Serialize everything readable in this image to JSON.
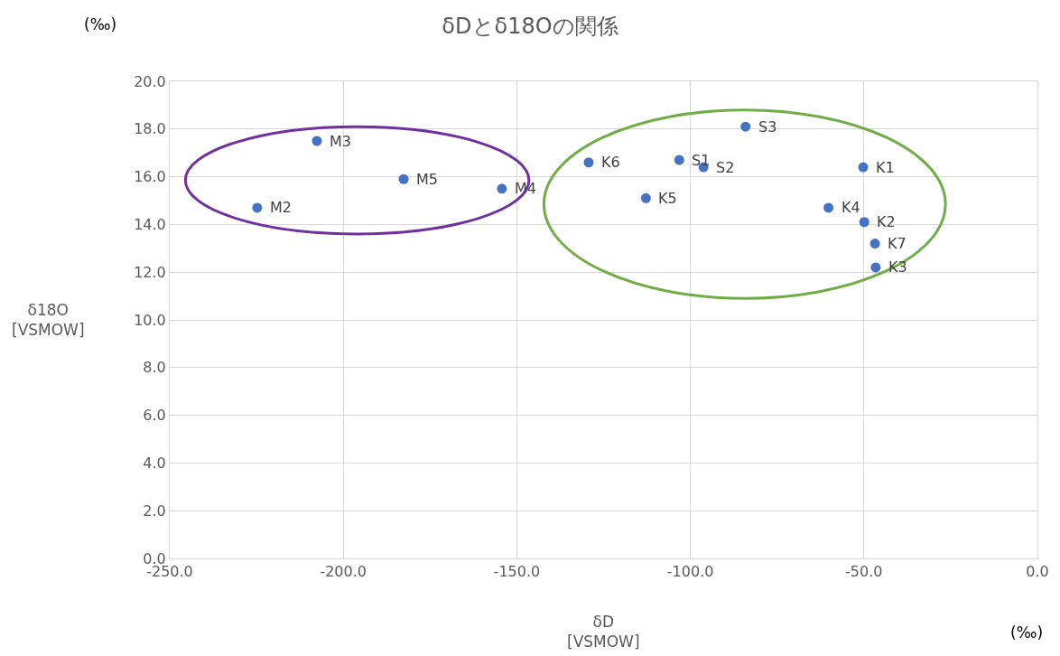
{
  "chart_data": {
    "type": "scatter",
    "title": "δDとδ18Oの関係",
    "xlabel": "δD\n[VSMOW]",
    "ylabel": "δ18O\n[VSMOW]",
    "x": [
      -224.8,
      -207.6,
      -182.6,
      -154.3,
      -129.3,
      -103.2,
      -96.2,
      -112.8,
      -84.1,
      -50.2,
      -60.2,
      -49.9,
      -46.8,
      -46.6
    ],
    "series": [
      {
        "color": "#4472c4",
        "values": [
          14.7,
          17.5,
          15.9,
          15.5,
          16.6,
          16.7,
          16.4,
          15.1,
          18.1,
          16.4,
          14.7,
          14.1,
          13.2,
          12.2
        ]
      }
    ],
    "annotations": [
      "(‰)",
      "(‰)",
      {
        "text": "M2",
        "x": -224.8,
        "y": 14.7
      },
      {
        "text": "M3",
        "x": -207.6,
        "y": 17.5
      },
      {
        "text": "M5",
        "x": -182.6,
        "y": 15.9
      },
      {
        "text": "M4",
        "x": -154.3,
        "y": 15.5
      },
      {
        "text": "K6",
        "x": -129.3,
        "y": 16.6
      },
      {
        "text": "S1",
        "x": -103.2,
        "y": 16.7
      },
      {
        "text": "S2",
        "x": -96.2,
        "y": 16.4
      },
      {
        "text": "K5",
        "x": -112.8,
        "y": 15.1
      },
      {
        "text": "S3",
        "x": -84.1,
        "y": 18.1
      },
      {
        "text": "K1",
        "x": -50.2,
        "y": 16.4
      },
      {
        "text": "K4",
        "x": -60.2,
        "y": 14.7
      },
      {
        "text": "K2",
        "x": -49.9,
        "y": 14.1
      },
      {
        "text": "K7",
        "x": -46.8,
        "y": 13.2
      },
      {
        "text": "K3",
        "x": -46.6,
        "y": 12.2
      }
    ],
    "xlim": [
      -250,
      0
    ],
    "xticks": [
      {
        "value": -250,
        "label": "-250.0"
      },
      {
        "value": -200,
        "label": "-200.0"
      },
      {
        "value": -150,
        "label": "-150.0"
      },
      {
        "value": -100,
        "label": "-100.0"
      },
      {
        "value": -50,
        "label": "-50.0"
      },
      {
        "value": 0,
        "label": "0.0"
      }
    ],
    "ylim": [
      0,
      20
    ],
    "yticks": [
      {
        "value": 0,
        "label": "0.0"
      },
      {
        "value": 2,
        "label": "2.0"
      },
      {
        "value": 4,
        "label": "4.0"
      },
      {
        "value": 6,
        "label": "6.0"
      },
      {
        "value": 8,
        "label": "8.0"
      },
      {
        "value": 10,
        "label": "10.0"
      },
      {
        "value": 12,
        "label": "12.0"
      },
      {
        "value": 14,
        "label": "14.0"
      },
      {
        "value": 16,
        "label": "16.0"
      },
      {
        "value": 18,
        "label": "18.0"
      },
      {
        "value": 20,
        "label": "20.0"
      }
    ],
    "grid": true,
    "marker": "circle"
  }
}
